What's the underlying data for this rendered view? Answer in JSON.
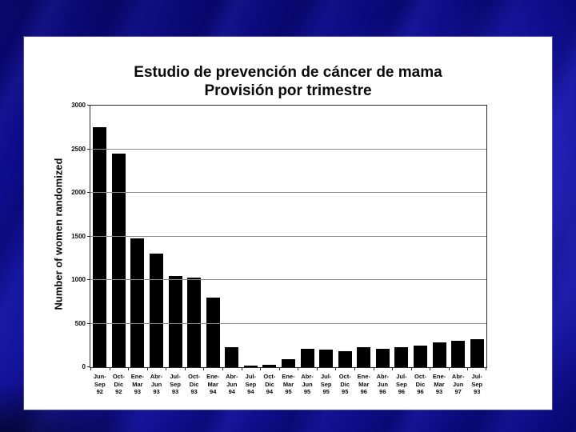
{
  "slide": {
    "title_line1": "Estudio de prevención de cáncer de mama",
    "title_line2": "Provisión por trimestre"
  },
  "chart_data": {
    "type": "bar",
    "title": "Estudio de prevención de cáncer de mama",
    "subtitle": "Provisión por trimestre",
    "xlabel": "",
    "ylabel": "Number of women randomized",
    "ylim": [
      0,
      3000
    ],
    "yticks": [
      0,
      500,
      1000,
      1500,
      2000,
      2500,
      3000
    ],
    "grid": true,
    "legend": "none",
    "bar_color": "#000000",
    "categories": [
      "Jun-Sep 92",
      "Oct-Dic 92",
      "Ene-Mar 93",
      "Abr-Jun 93",
      "Jul-Sep 93",
      "Oct-Dic 93",
      "Ene-Mar 94",
      "Abr-Jun 94",
      "Jul-Sep 94",
      "Oct-Dic 94",
      "Ene-Mar 95",
      "Abr-Jun 95",
      "Jul-Sep 95",
      "Oct-Dic 95",
      "Ene-Mar 96",
      "Abr-Jun 96",
      "Jul-Sep 96",
      "Oct-Dic 96",
      "Ene-Mar 93",
      "Abr-Jun 97",
      "Jul-Sep 93"
    ],
    "category_lines": [
      [
        "Jun-",
        "Sep",
        "92"
      ],
      [
        "Oct-",
        "Dic",
        "92"
      ],
      [
        "Ene-",
        "Mar",
        "93"
      ],
      [
        "Abr-",
        "Jun",
        "93"
      ],
      [
        "Jul-",
        "Sep",
        "93"
      ],
      [
        "Oct-",
        "Dic",
        "93"
      ],
      [
        "Ene-",
        "Mar",
        "94"
      ],
      [
        "Abr-",
        "Jun",
        "94"
      ],
      [
        "Jul-",
        "Sep",
        "94"
      ],
      [
        "Oct-",
        "Dic",
        "94"
      ],
      [
        "Ene-",
        "Mar",
        "95"
      ],
      [
        "Abr-",
        "Jun",
        "95"
      ],
      [
        "Jul-",
        "Sep",
        "95"
      ],
      [
        "Oct-",
        "Dic",
        "95"
      ],
      [
        "Ene-",
        "Mar",
        "96"
      ],
      [
        "Abr-",
        "Jun",
        "96"
      ],
      [
        "Jul-",
        "Sep",
        "96"
      ],
      [
        "Oct-",
        "Dic",
        "96"
      ],
      [
        "Ene-",
        "Mar",
        "93"
      ],
      [
        "Abr-",
        "Jun",
        "97"
      ],
      [
        "Jul-",
        "Sep",
        "93"
      ]
    ],
    "values": [
      2750,
      2450,
      1480,
      1300,
      1050,
      1030,
      800,
      225,
      20,
      30,
      95,
      210,
      200,
      185,
      230,
      215,
      225,
      250,
      280,
      305,
      320
    ]
  },
  "colors": {
    "background": "#0d0d96",
    "panel": "#ffffff",
    "bar": "#000000",
    "gridline": "#8a8a8a",
    "axis": "#2b2b2b",
    "text": "#0a0a0a"
  }
}
